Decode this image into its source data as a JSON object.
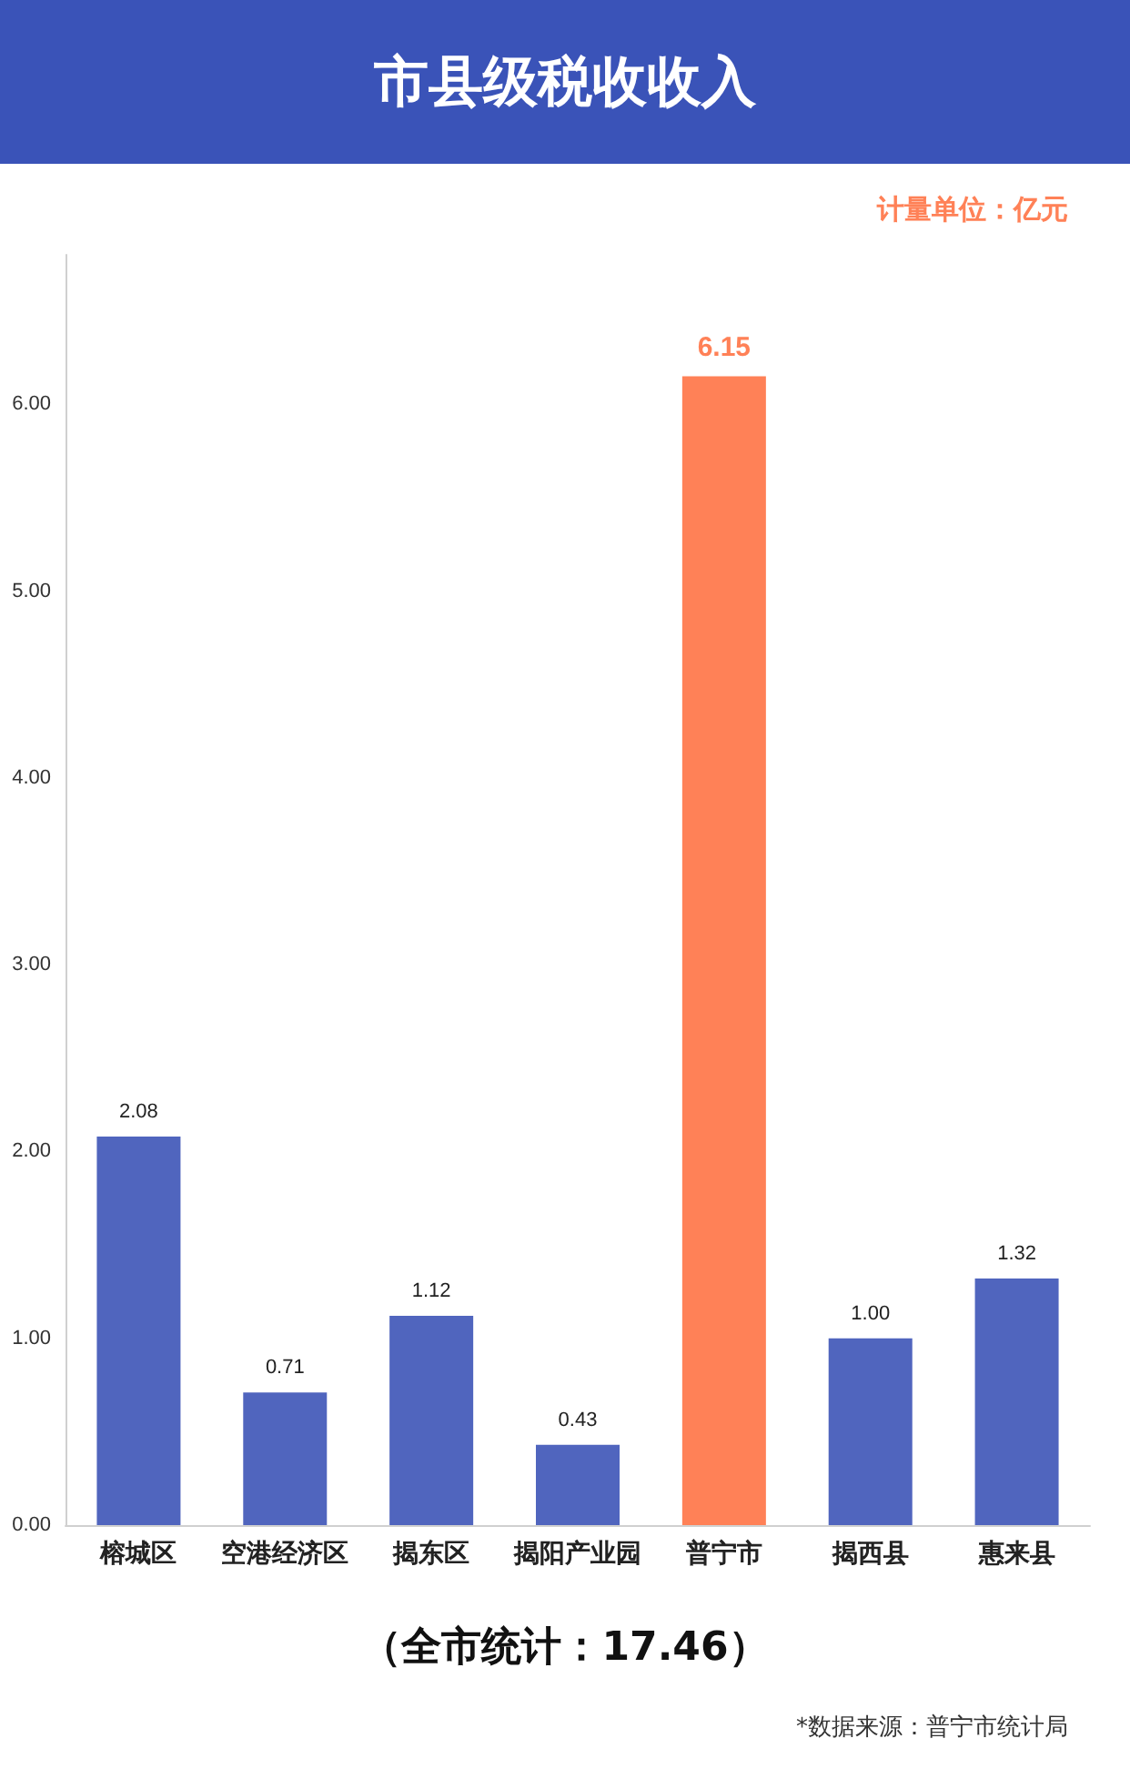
{
  "chart_data": {
    "type": "bar",
    "title": "市县级税收收入",
    "categories": [
      "榕城区",
      "空港经济区",
      "揭东区",
      "揭阳产业园",
      "普宁市",
      "揭西县",
      "惠来县"
    ],
    "values": [
      2.08,
      0.71,
      1.12,
      0.43,
      6.15,
      1.0,
      1.32
    ],
    "colors": [
      "#5065be",
      "#5065be",
      "#5065be",
      "#5065be",
      "#ff8157",
      "#5065be",
      "#5065be"
    ],
    "ylim": [
      0,
      6.8
    ],
    "yticks": [
      {
        "value": 0,
        "label": "0.00"
      },
      {
        "value": 1,
        "label": "1.00"
      },
      {
        "value": 2,
        "label": "2.00"
      },
      {
        "value": 3,
        "label": "3.00"
      },
      {
        "value": 4,
        "label": "4.00"
      },
      {
        "value": 5,
        "label": "5.00"
      },
      {
        "value": 6,
        "label": "6.00"
      }
    ],
    "value_labels": [
      "2.08",
      "0.71",
      "1.12",
      "0.43",
      "6.15",
      "1.00",
      "1.32"
    ],
    "annotations": [
      "计量单位：亿元",
      "（全市统计：17.46）",
      "*数据来源：普宁市统计局"
    ]
  }
}
